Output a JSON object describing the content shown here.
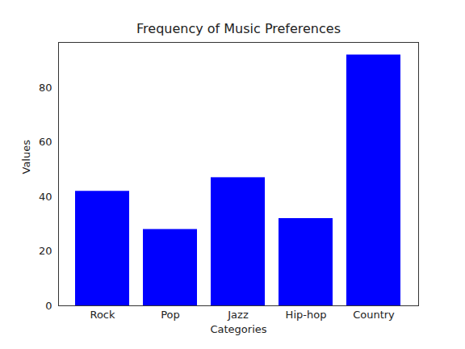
{
  "chart_data": {
    "type": "bar",
    "title": "Frequency of Music Preferences",
    "x_label": "Categories",
    "y_label": "Values",
    "categories": [
      "Rock",
      "Pop",
      "Jazz",
      "Hip-hop",
      "Country"
    ],
    "values": [
      42,
      28,
      47,
      32,
      92
    ],
    "color": "#0000ff",
    "ylim": [
      0,
      96.6
    ],
    "yticks": [
      0,
      20,
      40,
      60,
      80
    ],
    "grid": false
  }
}
